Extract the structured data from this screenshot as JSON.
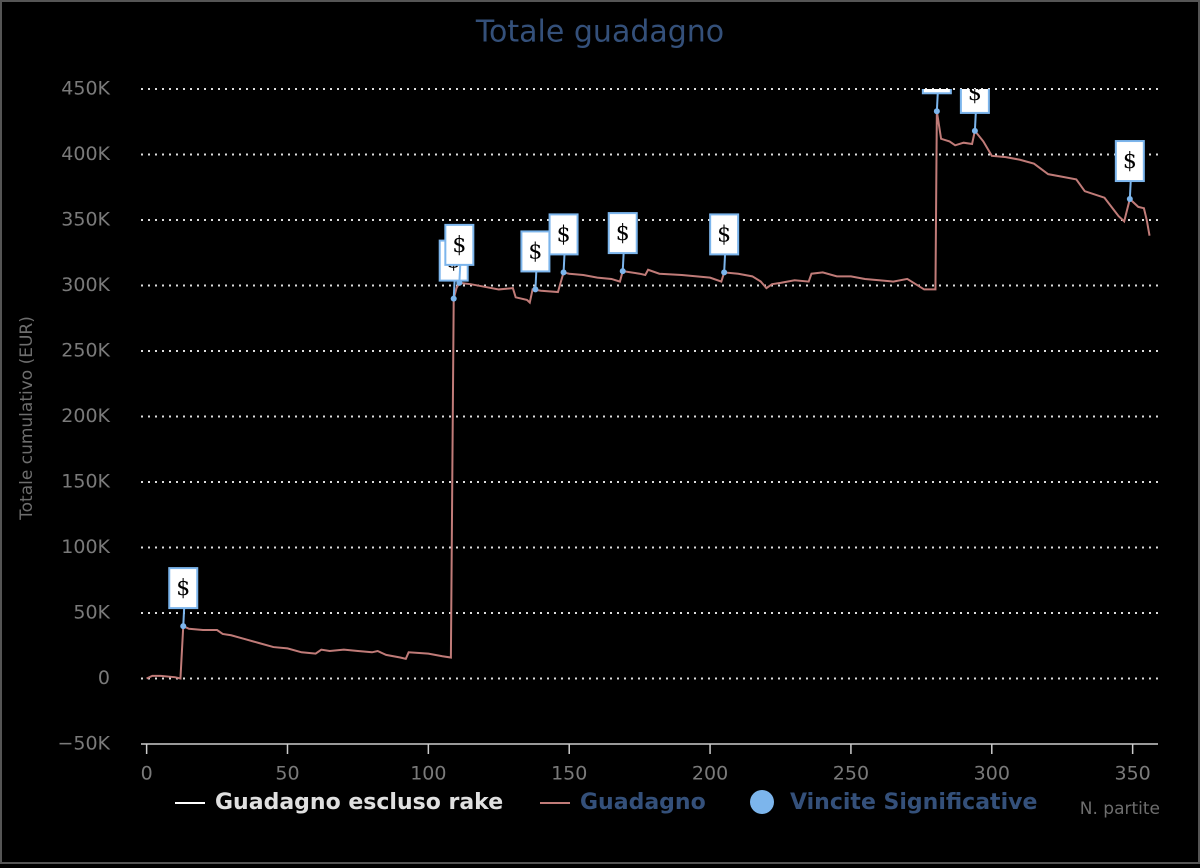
{
  "chart_data": {
    "type": "line",
    "title": "Totale guadagno",
    "y_label": "Totale cumulativo (EUR)",
    "x_label": "N. partite",
    "xlim": [
      -2,
      359
    ],
    "xticks": [
      0,
      50,
      100,
      150,
      200,
      250,
      300,
      350
    ],
    "ylim": [
      -50000,
      450000
    ],
    "yticks": [
      {
        "value": -50000,
        "label": "−50K"
      },
      0,
      {
        "value": 50000,
        "label": "50K"
      },
      {
        "value": 100000,
        "label": "100K"
      },
      {
        "value": 150000,
        "label": "150K"
      },
      {
        "value": 200000,
        "label": "200K"
      },
      {
        "value": 250000,
        "label": "250K"
      },
      {
        "value": 300000,
        "label": "300K"
      },
      {
        "value": 350000,
        "label": "350K"
      },
      {
        "value": 400000,
        "label": "400K"
      },
      {
        "value": 450000,
        "label": "450K"
      }
    ],
    "grid": true,
    "legend": "bottom",
    "series": [
      {
        "name": "Guadagno escluso rake",
        "color": "#ffffff",
        "visible": false
      },
      {
        "name": "Guadagno",
        "color": "#c07b78",
        "x": [
          0,
          2,
          5,
          10,
          12,
          13,
          15,
          20,
          25,
          27,
          30,
          35,
          40,
          45,
          50,
          55,
          60,
          62,
          65,
          70,
          75,
          80,
          82,
          85,
          90,
          92,
          93,
          100,
          105,
          108,
          109,
          110,
          111,
          115,
          120,
          125,
          130,
          131,
          135,
          136,
          137,
          140,
          146,
          148,
          150,
          155,
          160,
          165,
          168,
          169,
          175,
          177,
          178,
          182,
          190,
          200,
          204,
          205,
          210,
          215,
          218,
          220,
          222,
          225,
          230,
          235,
          236,
          240,
          245,
          250,
          255,
          260,
          265,
          270,
          273,
          276,
          280,
          280.5,
          282,
          285,
          287,
          290,
          293,
          294,
          297,
          300,
          305,
          310,
          315,
          320,
          325,
          330,
          333,
          340,
          345,
          347,
          349,
          352,
          354,
          355,
          356
        ],
        "values": [
          0,
          2000,
          2000,
          1000,
          0,
          40000,
          38000,
          37000,
          37000,
          34000,
          33000,
          30000,
          27000,
          24000,
          23000,
          20000,
          19000,
          22000,
          21000,
          22000,
          21000,
          20000,
          21000,
          18000,
          16000,
          15000,
          20000,
          19000,
          17000,
          16000,
          290000,
          298000,
          302000,
          301000,
          299000,
          297000,
          298000,
          291000,
          289000,
          287000,
          297000,
          296000,
          295000,
          310000,
          309000,
          308000,
          306000,
          305000,
          303000,
          311000,
          309000,
          308000,
          312000,
          309000,
          308000,
          306000,
          303000,
          310000,
          309000,
          307000,
          303000,
          298000,
          301000,
          302000,
          304000,
          303000,
          309000,
          310000,
          307000,
          307000,
          305000,
          304000,
          303000,
          305000,
          301000,
          297000,
          297000,
          433000,
          412000,
          410000,
          407000,
          409000,
          408000,
          418000,
          410000,
          399000,
          398000,
          396000,
          393000,
          385000,
          383000,
          381000,
          372000,
          367000,
          353000,
          349000,
          366000,
          360000,
          359000,
          350000,
          338000
        ]
      },
      {
        "name": "Vincite Significative",
        "color": "#7cb5ec",
        "type": "flags",
        "x": [
          13,
          109,
          111,
          138,
          148,
          169,
          205,
          280.5,
          294,
          349
        ],
        "values": [
          40000,
          290000,
          302000,
          297000,
          310000,
          311000,
          310000,
          433000,
          418000,
          366000
        ],
        "labels": [
          "$",
          "$",
          "$",
          "$",
          "$",
          "$",
          "$",
          "$",
          "$",
          "$"
        ]
      }
    ]
  }
}
